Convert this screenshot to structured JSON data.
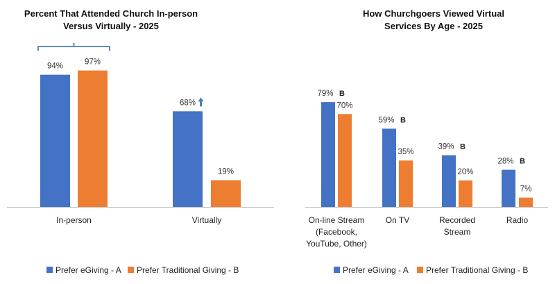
{
  "colors": {
    "series_a": "#4472C4",
    "series_b": "#ED7D31",
    "axis": "#BFBFBF",
    "bracket": "#4A7EBB",
    "arrow": "#4A7EBB"
  },
  "chart_data": [
    {
      "type": "bar",
      "title": [
        "Percent That Attended Church In-person",
        "Versus Virtually - 2025"
      ],
      "categories": [
        [
          "In-person"
        ],
        [
          "Virtually"
        ]
      ],
      "series": [
        {
          "name": "Prefer eGiving - A",
          "values": [
            94,
            68
          ],
          "labels": [
            "94%",
            "68%"
          ],
          "marks": [
            "",
            ""
          ]
        },
        {
          "name": "Prefer Traditional Giving - B",
          "values": [
            97,
            19
          ],
          "labels": [
            "97%",
            "19%"
          ],
          "marks": [
            "",
            ""
          ]
        }
      ],
      "ylim": [
        0,
        100
      ],
      "grid": false,
      "annotations": {
        "bracket_over": "In-person",
        "up_arrow_on": "Virtually / Prefer eGiving - A"
      },
      "legend": "bottom"
    },
    {
      "type": "bar",
      "title": [
        "How Churchgoers Viewed Virtual",
        "Services By Age - 2025"
      ],
      "categories": [
        [
          "On-line Stream",
          "(Facebook,",
          "YouTube, Other)"
        ],
        [
          "On TV"
        ],
        [
          "Recorded",
          "Stream"
        ],
        [
          "Radio"
        ]
      ],
      "series": [
        {
          "name": "Prefer eGiving - A",
          "values": [
            79,
            59,
            39,
            28
          ],
          "labels": [
            "79%",
            "59%",
            "39%",
            "28%"
          ],
          "marks": [
            "B",
            "B",
            "B",
            "B"
          ]
        },
        {
          "name": "Prefer Traditional Giving - B",
          "values": [
            70,
            35,
            20,
            7
          ],
          "labels": [
            "70%",
            "35%",
            "20%",
            "7%"
          ],
          "marks": [
            "",
            "",
            "",
            ""
          ]
        }
      ],
      "ylim": [
        0,
        100
      ],
      "grid": false,
      "legend": "bottom"
    }
  ]
}
